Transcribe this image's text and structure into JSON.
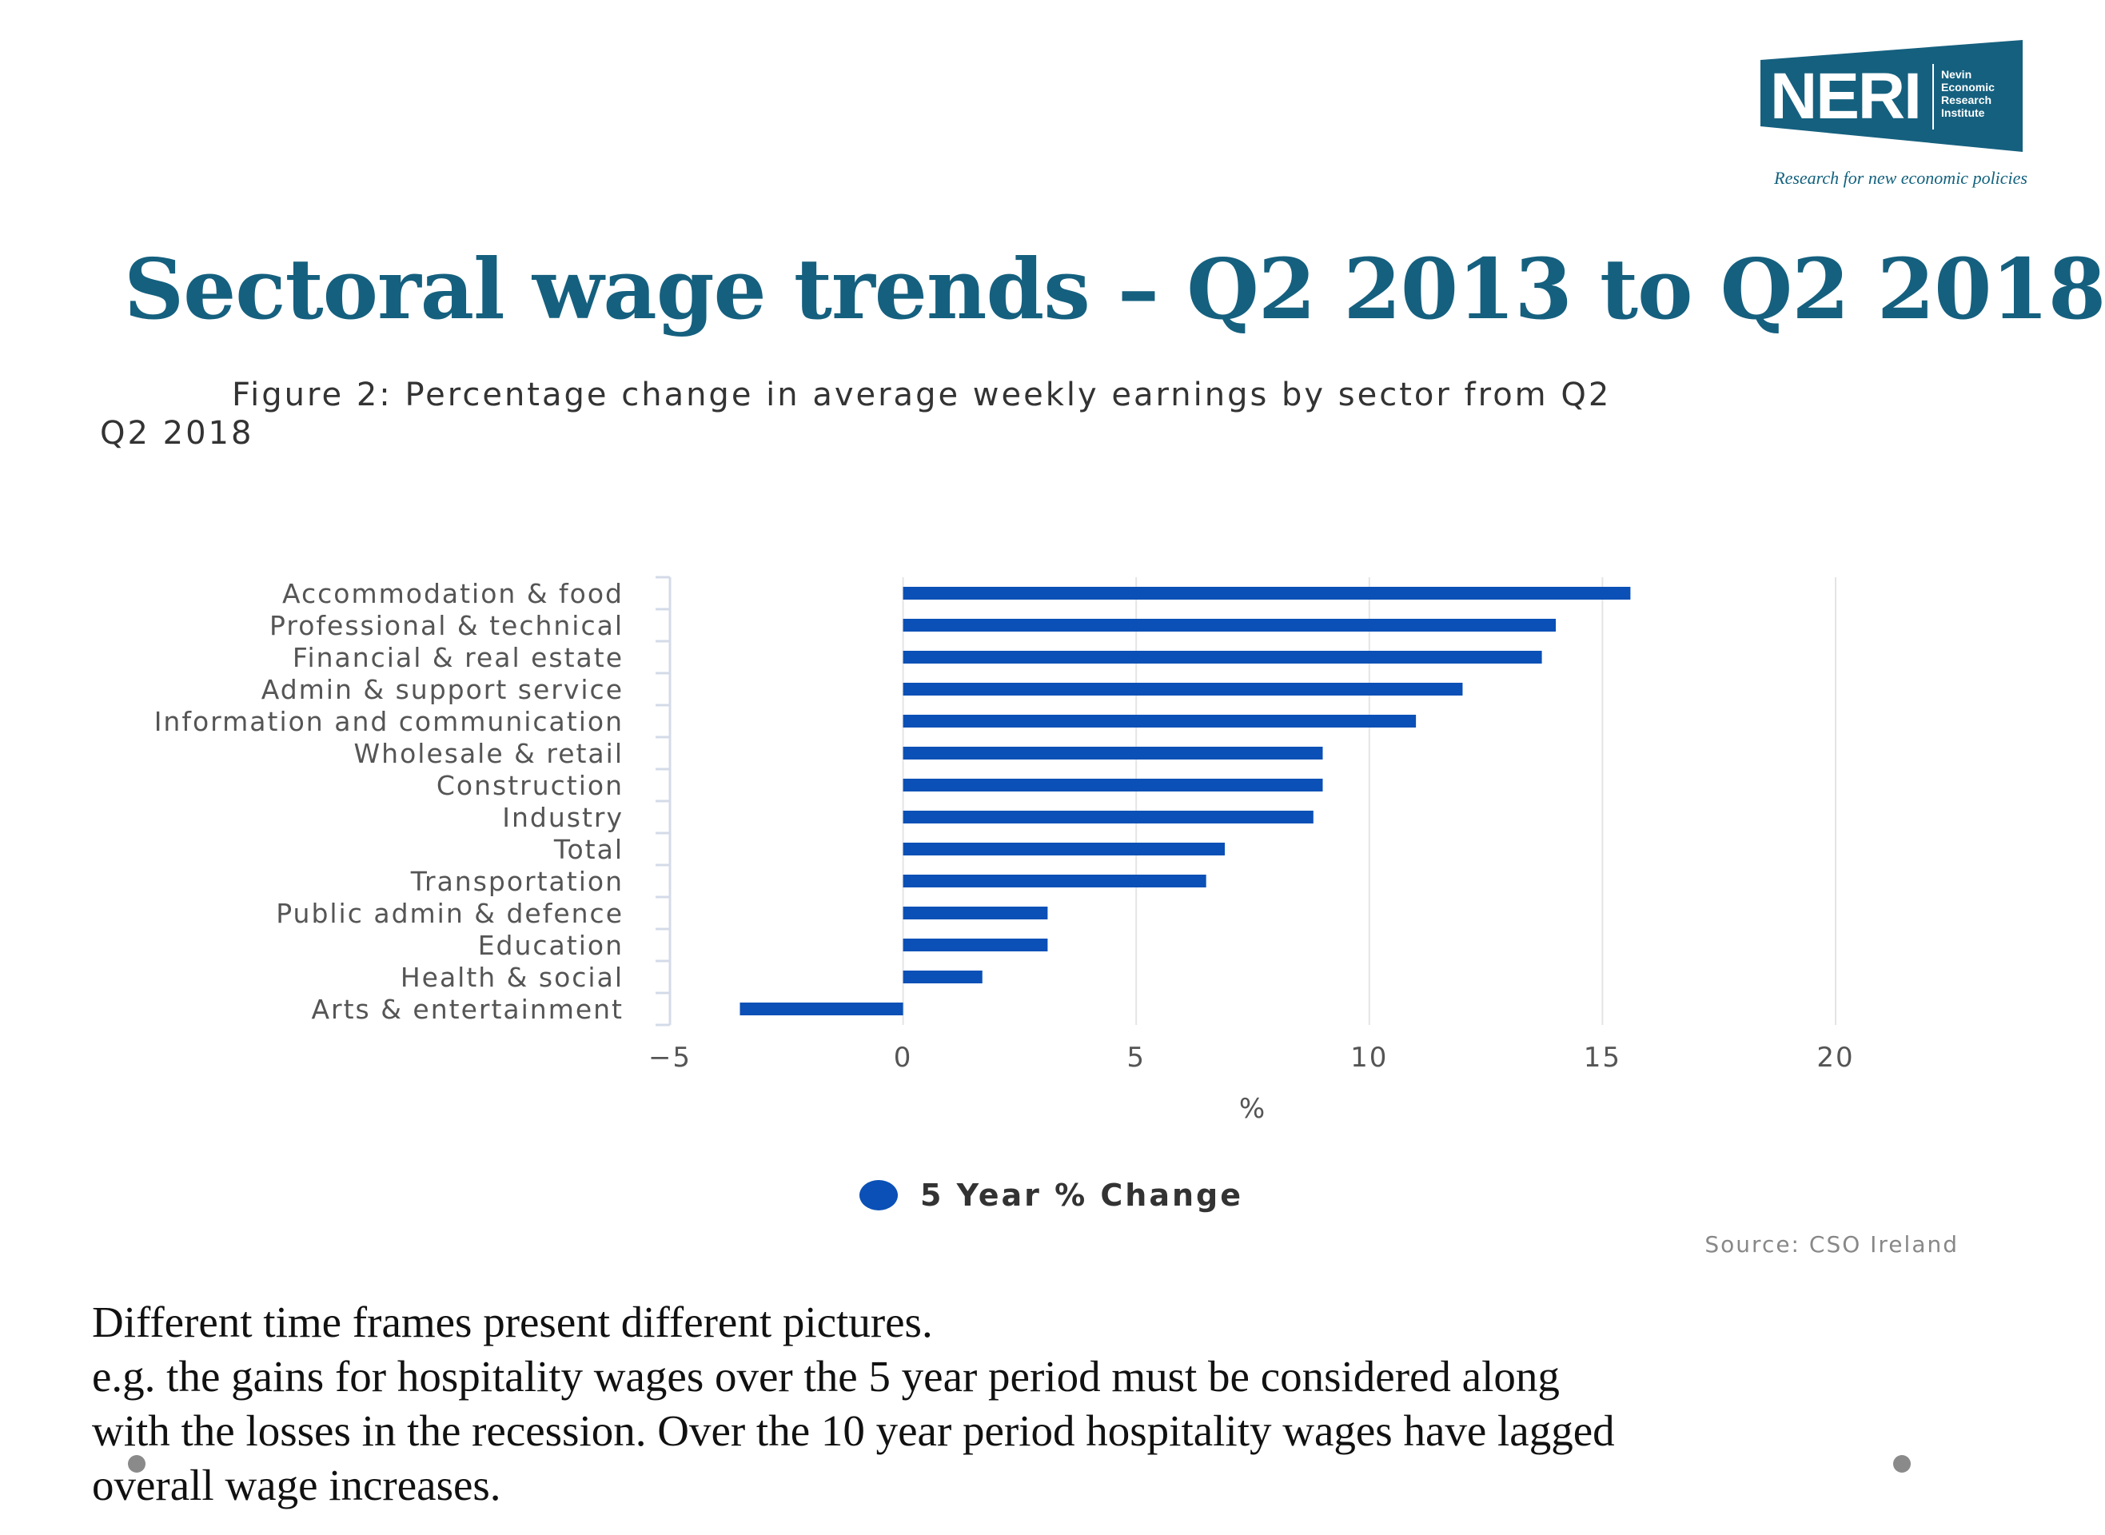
{
  "logo": {
    "name": "NERI",
    "lines": [
      "Nevin",
      "Economic",
      "Research",
      "Institute"
    ]
  },
  "tagline": "Research for new economic policies",
  "title": "Sectoral wage trends – Q2 2013 to Q2 2018",
  "caption": {
    "line1": "Figure 2: Percentage change in average weekly earnings by sector from Q2",
    "line2": "Q2 2018"
  },
  "chart_data": {
    "type": "bar",
    "orientation": "horizontal",
    "categories": [
      "Accommodation & food",
      "Professional & technical",
      "Financial & real estate",
      "Admin & support service",
      "Information and communication",
      "Wholesale & retail",
      "Construction",
      "Industry",
      "Total",
      "Transportation",
      "Public admin & defence",
      "Education",
      "Health & social",
      "Arts & entertainment"
    ],
    "series": [
      {
        "name": "5 Year % Change",
        "values": [
          15.6,
          14.0,
          13.7,
          12.0,
          11.0,
          9.0,
          9.0,
          8.8,
          6.9,
          6.5,
          3.1,
          3.1,
          1.7,
          -3.5
        ]
      }
    ],
    "xlabel": "%",
    "xlim": [
      -5,
      20
    ],
    "xticks": [
      -5,
      0,
      5,
      10,
      15,
      20
    ],
    "tick_labels": [
      "−5",
      "0",
      "5",
      "10",
      "15",
      "20"
    ],
    "grid": true,
    "legend": "bottom-center",
    "color": "#0a50b6"
  },
  "legend_label": "5 Year % Change",
  "source": "Source: CSO Ireland",
  "body_text": [
    "Different time frames present different pictures.",
    "e.g. the gains for hospitality wages over the 5 year period must be considered along",
    "with the losses in the recession. Over the 10 year period hospitality wages have lagged",
    "overall wage increases."
  ]
}
